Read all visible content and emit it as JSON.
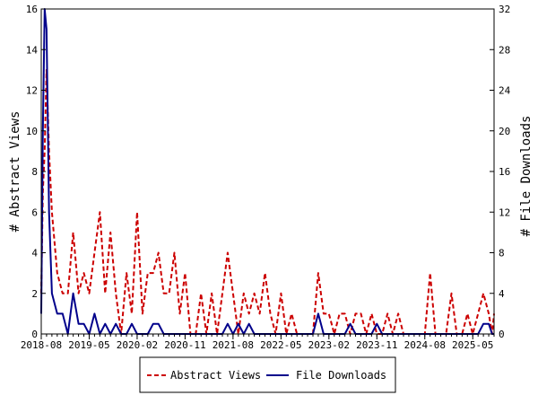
{
  "chart_data": {
    "type": "line",
    "ylabel": "# Abstract Views",
    "y2label": "# File Downloads",
    "ylim": [
      0,
      16
    ],
    "y2lim": [
      0,
      32
    ],
    "yticks": [
      0,
      2,
      4,
      6,
      8,
      10,
      12,
      14,
      16
    ],
    "y2ticks": [
      0,
      4,
      8,
      12,
      16,
      20,
      24,
      28,
      32
    ],
    "xlim": [
      "2018-08",
      "2025-09"
    ],
    "xticks": [
      "2018-08",
      "2019-05",
      "2020-02",
      "2020-11",
      "2021-08",
      "2022-05",
      "2023-02",
      "2023-11",
      "2024-08",
      "2025-05"
    ],
    "grid": false,
    "legend_position": "bottom-center",
    "series": [
      {
        "name": "Abstract Views",
        "axis": "left",
        "color": "#cc0000",
        "dash": "dashed",
        "points": [
          [
            "2018-08",
            2
          ],
          [
            "2018-08-10",
            7
          ],
          [
            "2018-08-20",
            9
          ],
          [
            "2018-09",
            13
          ],
          [
            "2018-09-15",
            9
          ],
          [
            "2018-10",
            6
          ],
          [
            "2018-11",
            3
          ],
          [
            "2018-12",
            2
          ],
          [
            "2019-01",
            2
          ],
          [
            "2019-02",
            5
          ],
          [
            "2019-03",
            2
          ],
          [
            "2019-04",
            3
          ],
          [
            "2019-05",
            2
          ],
          [
            "2019-06",
            4
          ],
          [
            "2019-07",
            6
          ],
          [
            "2019-08",
            2
          ],
          [
            "2019-09",
            5
          ],
          [
            "2019-10",
            2
          ],
          [
            "2019-11",
            0
          ],
          [
            "2019-12",
            3
          ],
          [
            "2020-01",
            1
          ],
          [
            "2020-02",
            6
          ],
          [
            "2020-03",
            1
          ],
          [
            "2020-04",
            3
          ],
          [
            "2020-05",
            3
          ],
          [
            "2020-06",
            4
          ],
          [
            "2020-07",
            2
          ],
          [
            "2020-08",
            2
          ],
          [
            "2020-09",
            4
          ],
          [
            "2020-10",
            1
          ],
          [
            "2020-11",
            3
          ],
          [
            "2020-12",
            0
          ],
          [
            "2021-01",
            0
          ],
          [
            "2021-02",
            2
          ],
          [
            "2021-03",
            0
          ],
          [
            "2021-04",
            2
          ],
          [
            "2021-05",
            0
          ],
          [
            "2021-06",
            2
          ],
          [
            "2021-07",
            4
          ],
          [
            "2021-08",
            2
          ],
          [
            "2021-09",
            0
          ],
          [
            "2021-10",
            2
          ],
          [
            "2021-11",
            1
          ],
          [
            "2021-12",
            2
          ],
          [
            "2022-01",
            1
          ],
          [
            "2022-02",
            3
          ],
          [
            "2022-03",
            1
          ],
          [
            "2022-04",
            0
          ],
          [
            "2022-05",
            2
          ],
          [
            "2022-06",
            0
          ],
          [
            "2022-07",
            1
          ],
          [
            "2022-08",
            0
          ],
          [
            "2022-09",
            0
          ],
          [
            "2022-10",
            0
          ],
          [
            "2022-11",
            0
          ],
          [
            "2022-12",
            3
          ],
          [
            "2023-01",
            1
          ],
          [
            "2023-02",
            1
          ],
          [
            "2023-03",
            0
          ],
          [
            "2023-04",
            1
          ],
          [
            "2023-05",
            1
          ],
          [
            "2023-06",
            0
          ],
          [
            "2023-07",
            1
          ],
          [
            "2023-08",
            1
          ],
          [
            "2023-09",
            0
          ],
          [
            "2023-10",
            1
          ],
          [
            "2023-11",
            0
          ],
          [
            "2023-12",
            0
          ],
          [
            "2024-01",
            1
          ],
          [
            "2024-02",
            0
          ],
          [
            "2024-03",
            1
          ],
          [
            "2024-04",
            0
          ],
          [
            "2024-05",
            0
          ],
          [
            "2024-06",
            0
          ],
          [
            "2024-07",
            0
          ],
          [
            "2024-08",
            0
          ],
          [
            "2024-09",
            3
          ],
          [
            "2024-10",
            0
          ],
          [
            "2024-11",
            0
          ],
          [
            "2024-12",
            0
          ],
          [
            "2025-01",
            2
          ],
          [
            "2025-02",
            0
          ],
          [
            "2025-03",
            0
          ],
          [
            "2025-04",
            1
          ],
          [
            "2025-05",
            0
          ],
          [
            "2025-06",
            1
          ],
          [
            "2025-07",
            2
          ],
          [
            "2025-08",
            1
          ],
          [
            "2025-08-20",
            0
          ],
          [
            "2025-09",
            1
          ]
        ]
      },
      {
        "name": "File Downloads",
        "axis": "right",
        "color": "#00008b",
        "dash": "solid",
        "points": [
          [
            "2018-08",
            2
          ],
          [
            "2018-08-10",
            20
          ],
          [
            "2018-08-20",
            32
          ],
          [
            "2018-09",
            30
          ],
          [
            "2018-09-15",
            12
          ],
          [
            "2018-10",
            4
          ],
          [
            "2018-11",
            2
          ],
          [
            "2018-12",
            2
          ],
          [
            "2019-01",
            0
          ],
          [
            "2019-02",
            4
          ],
          [
            "2019-03",
            1
          ],
          [
            "2019-04",
            1
          ],
          [
            "2019-05",
            0
          ],
          [
            "2019-06",
            2
          ],
          [
            "2019-07",
            0
          ],
          [
            "2019-08",
            1
          ],
          [
            "2019-09",
            0
          ],
          [
            "2019-10",
            1
          ],
          [
            "2019-11",
            0
          ],
          [
            "2019-12",
            0
          ],
          [
            "2020-01",
            1
          ],
          [
            "2020-02",
            0
          ],
          [
            "2020-03",
            0
          ],
          [
            "2020-04",
            0
          ],
          [
            "2020-05",
            1
          ],
          [
            "2020-06",
            1
          ],
          [
            "2020-07",
            0
          ],
          [
            "2020-08",
            0
          ],
          [
            "2020-09",
            0
          ],
          [
            "2020-10",
            0
          ],
          [
            "2020-11",
            0
          ],
          [
            "2020-12",
            0
          ],
          [
            "2021-01",
            0
          ],
          [
            "2021-02",
            0
          ],
          [
            "2021-03",
            0
          ],
          [
            "2021-04",
            0
          ],
          [
            "2021-05",
            0
          ],
          [
            "2021-06",
            0
          ],
          [
            "2021-07",
            1
          ],
          [
            "2021-08",
            0
          ],
          [
            "2021-09",
            1
          ],
          [
            "2021-10",
            0
          ],
          [
            "2021-11",
            1
          ],
          [
            "2021-12",
            0
          ],
          [
            "2022-01",
            0
          ],
          [
            "2022-02",
            0
          ],
          [
            "2022-03",
            0
          ],
          [
            "2022-04",
            0
          ],
          [
            "2022-05",
            0
          ],
          [
            "2022-06",
            0
          ],
          [
            "2022-07",
            0
          ],
          [
            "2022-08",
            0
          ],
          [
            "2022-09",
            0
          ],
          [
            "2022-10",
            0
          ],
          [
            "2022-11",
            0
          ],
          [
            "2022-12",
            2
          ],
          [
            "2023-01",
            0
          ],
          [
            "2023-02",
            0
          ],
          [
            "2023-03",
            0
          ],
          [
            "2023-04",
            0
          ],
          [
            "2023-05",
            0
          ],
          [
            "2023-06",
            1
          ],
          [
            "2023-07",
            0
          ],
          [
            "2023-08",
            0
          ],
          [
            "2023-09",
            0
          ],
          [
            "2023-10",
            0
          ],
          [
            "2023-11",
            1
          ],
          [
            "2023-12",
            0
          ],
          [
            "2024-01",
            0
          ],
          [
            "2024-02",
            0
          ],
          [
            "2024-03",
            0
          ],
          [
            "2024-04",
            0
          ],
          [
            "2024-05",
            0
          ],
          [
            "2024-06",
            0
          ],
          [
            "2024-07",
            0
          ],
          [
            "2024-08",
            0
          ],
          [
            "2024-09",
            0
          ],
          [
            "2024-10",
            0
          ],
          [
            "2024-11",
            0
          ],
          [
            "2024-12",
            0
          ],
          [
            "2025-01",
            0
          ],
          [
            "2025-02",
            0
          ],
          [
            "2025-03",
            0
          ],
          [
            "2025-04",
            0
          ],
          [
            "2025-05",
            0
          ],
          [
            "2025-06",
            0
          ],
          [
            "2025-07",
            1
          ],
          [
            "2025-08",
            1
          ],
          [
            "2025-08-20",
            0
          ],
          [
            "2025-09",
            0
          ]
        ]
      }
    ]
  }
}
